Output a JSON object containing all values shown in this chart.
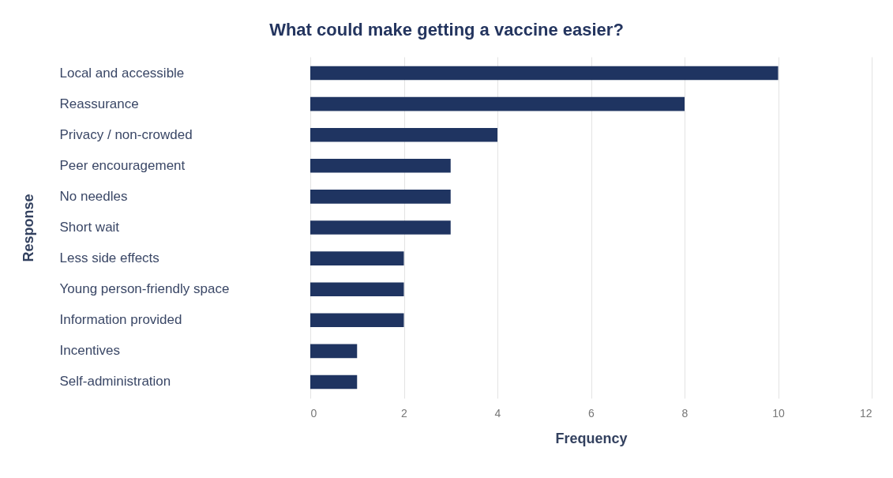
{
  "chart_data": {
    "type": "bar",
    "orientation": "horizontal",
    "title": "What could make getting a vaccine easier?",
    "xlabel": "Frequency",
    "ylabel": "Response",
    "categories": [
      "Local and accessible",
      "Reassurance",
      "Privacy / non-crowded",
      "Peer encouragement",
      "No needles",
      "Short wait",
      "Less side effects",
      "Young person-friendly space",
      "Information provided",
      "Incentives",
      "Self-administration"
    ],
    "values": [
      10,
      8,
      4,
      3,
      3,
      3,
      2,
      2,
      2,
      1,
      1
    ],
    "color": "#1f3461",
    "xlim": [
      0,
      12
    ],
    "xticks": [
      0,
      2,
      4,
      6,
      8,
      10,
      12
    ],
    "grid": "x"
  }
}
